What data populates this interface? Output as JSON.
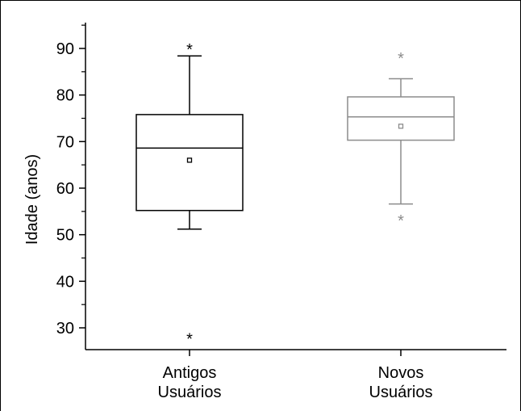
{
  "chart_data": {
    "type": "boxplot",
    "title": "",
    "xlabel": "",
    "ylabel": "Idade (anos)",
    "ylim": [
      25,
      96
    ],
    "yticks": [
      30,
      40,
      50,
      60,
      70,
      80,
      90
    ],
    "minor_yticks": [
      35,
      45,
      55,
      65,
      75,
      85,
      95
    ],
    "grid": false,
    "categories": [
      [
        "Antigos",
        "Usuários"
      ],
      [
        "Novos",
        "Usuários"
      ]
    ],
    "boxes": [
      {
        "category": "Antigos Usuários",
        "whisker_low": 51.2,
        "q1": 55.2,
        "median": 68.6,
        "q3": 75.8,
        "whisker_high": 88.4,
        "mean": 66.0,
        "outliers": [
          90.2,
          28.0
        ],
        "color": "#000000"
      },
      {
        "category": "Novos Usuários",
        "whisker_low": 56.6,
        "q1": 70.3,
        "median": 75.3,
        "q3": 79.6,
        "whisker_high": 83.5,
        "mean": 73.3,
        "outliers": [
          88.3,
          53.4
        ],
        "color": "#8c8c8c"
      }
    ]
  }
}
